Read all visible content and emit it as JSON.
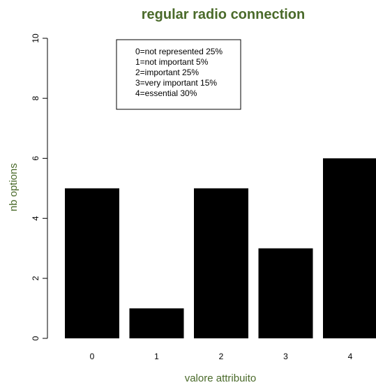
{
  "chart_data": {
    "type": "bar",
    "title": "regular radio connection",
    "xlabel": "valore attribuito",
    "ylabel": "nb options",
    "categories": [
      "0",
      "1",
      "2",
      "3",
      "4"
    ],
    "values": [
      5,
      1,
      5,
      3,
      6
    ],
    "ylim": [
      0,
      10
    ],
    "yticks": [
      "0",
      "2",
      "4",
      "6",
      "8",
      "10"
    ],
    "bar_color": "#000000",
    "title_color": "#4a6a2a",
    "legend_placement": "top-left",
    "legend": [
      "0=not represented 25%",
      "1=not important 5%",
      "2=important 25%",
      "3=very important 15%",
      "4=essential 30%"
    ]
  }
}
